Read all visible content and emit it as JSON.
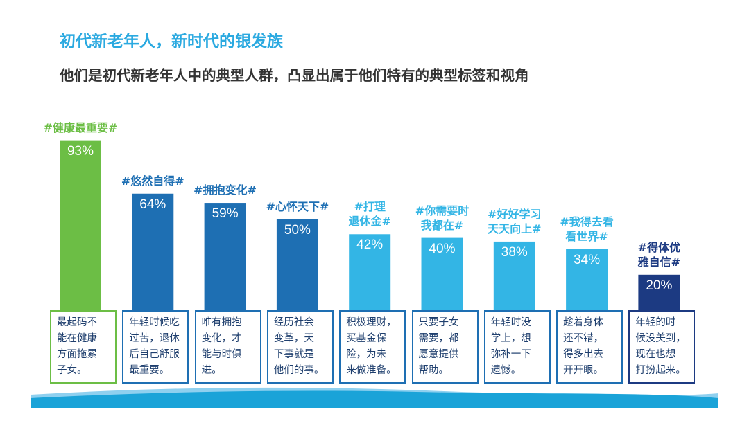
{
  "header": {
    "title": "初代新老年人，新时代的银发族",
    "subtitle": "他们是初代新老年人中的典型人群，凸显出属于他们特有的典型标签和视角"
  },
  "colors": {
    "title": "#2aa9e0",
    "subtitle": "#333333",
    "green": "#6cbe45",
    "blue": "#1e6fb3",
    "sky": "#33b5e5",
    "navy": "#1c3a82",
    "wave_dark": "#1aa3d8",
    "wave_light": "#8fd0ef"
  },
  "chart_data": {
    "type": "bar",
    "ylim": [
      0,
      100
    ],
    "grid": false,
    "categories": [
      {
        "hashtag": "#健康最重要#",
        "value": 93,
        "label": "93%",
        "description": "最起码不\n能在健康\n方面拖累\n子女。",
        "tone": "green"
      },
      {
        "hashtag": "#悠然自得#",
        "value": 64,
        "label": "64%",
        "description": "年轻时候吃\n过苦，退休\n后自己舒服\n最重要。",
        "tone": "blue"
      },
      {
        "hashtag": "#拥抱变化#",
        "value": 59,
        "label": "59%",
        "description": "唯有拥抱\n变化，才\n能与时俱\n进。",
        "tone": "blue"
      },
      {
        "hashtag": "#心怀天下#",
        "value": 50,
        "label": "50%",
        "description": "经历社会\n变革，天\n下事就是\n他们的事。",
        "tone": "blue"
      },
      {
        "hashtag": "#打理\n退休金#",
        "value": 42,
        "label": "42%",
        "description": "积极理财，\n买基金保\n险，为未\n来做准备。",
        "tone": "sky"
      },
      {
        "hashtag": "#你需要时\n我都在#",
        "value": 40,
        "label": "40%",
        "description": "只要子女\n需要，都\n愿意提供\n帮助。",
        "tone": "sky"
      },
      {
        "hashtag": "#好好学习\n天天向上#",
        "value": 38,
        "label": "38%",
        "description": "年轻时没\n学上，想\n弥补一下\n遗憾。",
        "tone": "sky"
      },
      {
        "hashtag": "#我得去看\n看世界#",
        "value": 34,
        "label": "34%",
        "description": "趁着身体\n还不错，\n得多出去\n开开眼。",
        "tone": "sky"
      },
      {
        "hashtag": "#得体优\n雅自信#",
        "value": 20,
        "label": "20%",
        "description": "年轻的时\n候没美到，\n现在也想\n打扮起来。",
        "tone": "navy"
      }
    ]
  }
}
